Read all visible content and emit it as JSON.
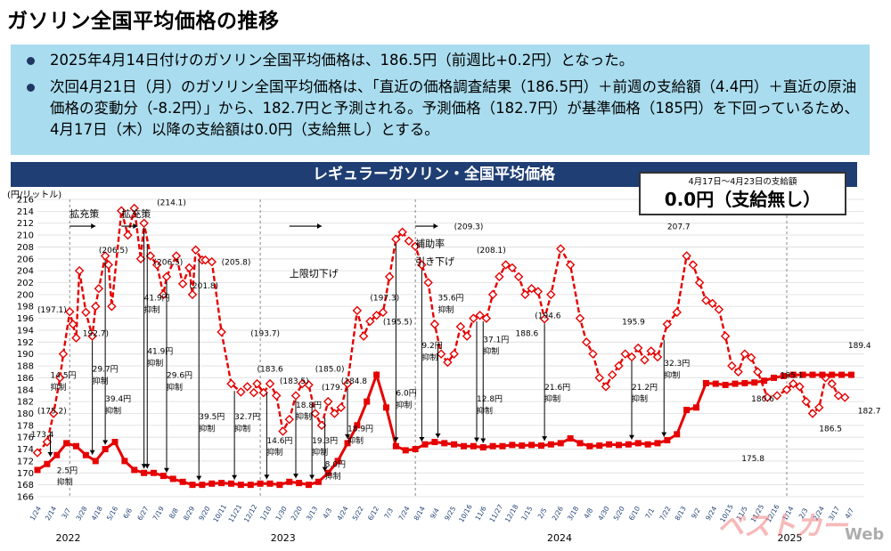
{
  "page_title": "ガソリン全国平均価格の推移",
  "summary": {
    "bullet1": "2025年4月14日付けのガソリン全国平均価格は、186.5円（前週比+0.2円）となった。",
    "bullet2": "次回4月21日（月）のガソリン全国平均価格は、「直近の価格調査結果（186.5円）＋前週の支給額（4.4円）＋直近の原油価格の変動分（-8.2円）」から、182.7円と予測される。予測価格（182.7円）が基準価格（185円）を下回っているため、4月17日（木）以降の支給額は0.0円（支給無し）とする。"
  },
  "banner": "レギュラーガソリン・全国平均価格",
  "subsidy_box": {
    "period": "4月17日〜4月23日の支給額",
    "amount": "0.0円（支給無し）"
  },
  "colors": {
    "series": "#e60000",
    "banner_bg": "#1f3e73",
    "summary_bg": "#a9dcee",
    "arrow": "#000000"
  },
  "watermark": {
    "logo": "ベストカー",
    "suffix": "Web"
  },
  "chart_data": {
    "type": "line",
    "unit": "(円/リットル)",
    "ylim": [
      166,
      216
    ],
    "yticks": [
      166,
      168,
      170,
      172,
      174,
      176,
      178,
      180,
      182,
      184,
      186,
      188,
      190,
      192,
      194,
      196,
      198,
      200,
      202,
      204,
      206,
      208,
      210,
      212,
      214,
      216
    ],
    "grid": "horizontal",
    "xtick_labels": [
      "1/24",
      "2/14",
      "3/7",
      "3/28",
      "4/18",
      "5/16",
      "6/6",
      "6/27",
      "7/19",
      "8/8",
      "8/29",
      "9/20",
      "10/11",
      "11/21",
      "12/12",
      "1/10",
      "1/30",
      "2/20",
      "3/13",
      "4/3",
      "4/24",
      "5/22",
      "6/12",
      "7/3",
      "7/24",
      "8/14",
      "9/4",
      "9/25",
      "10/16",
      "11/6",
      "11/27",
      "12/18",
      "1/15",
      "2/5",
      "2/26",
      "3/18",
      "4/8",
      "4/30",
      "5/20",
      "6/10",
      "7/1",
      "7/22",
      "8/13",
      "9/2",
      "9/24",
      "10/15",
      "11/5",
      "11/25",
      "12/16",
      "1/14",
      "2/3",
      "2/24",
      "3/17",
      "4/7"
    ],
    "year_labels": [
      {
        "label": "2022",
        "at": "3/7"
      },
      {
        "label": "2023",
        "at": "1/30"
      },
      {
        "label": "2024",
        "at": "2/26"
      },
      {
        "label": "2025",
        "at": "1/14"
      }
    ],
    "series": [
      {
        "role": "without_subsidy",
        "x": [
          0,
          3,
          5,
          7,
          8,
          10,
          11,
          12,
          13,
          15,
          17,
          18,
          19,
          21,
          22,
          23,
          26,
          28,
          30,
          32,
          33,
          35,
          37,
          39,
          40,
          43,
          45,
          47,
          48,
          49,
          51,
          52,
          54,
          57,
          60,
          63,
          65,
          67,
          68,
          70,
          72,
          74,
          76,
          78,
          80,
          82,
          84,
          86,
          88,
          90,
          92,
          94,
          96,
          99,
          101,
          103,
          105,
          107,
          109,
          111,
          113,
          115,
          117,
          119,
          121,
          123,
          125,
          127,
          129,
          131,
          133,
          135,
          137,
          139,
          141,
          143,
          145,
          147,
          149,
          151,
          153,
          155,
          157,
          159,
          162,
          165,
          168,
          170,
          172,
          174,
          176,
          178,
          180,
          182,
          184,
          186,
          188,
          190,
          192,
          195,
          198,
          201,
          203,
          205,
          207,
          209,
          211,
          213,
          215,
          217,
          219,
          221,
          223,
          226,
          229,
          232,
          234,
          236,
          238,
          240,
          242,
          244,
          246,
          248,
          250
        ],
        "values": [
          173.4,
          175.2,
          180.0,
          186.0,
          190.0,
          197.1,
          195.0,
          192.7,
          204.0,
          197.0,
          193.0,
          198.0,
          201.0,
          206.5,
          205.0,
          198.0,
          214.1,
          210.0,
          214.5,
          206.0,
          212.0,
          206.5,
          205.0,
          200.0,
          203.0,
          206.5,
          201.8,
          204.5,
          200.0,
          207.5,
          205.8,
          205.8,
          205.5,
          193.7,
          185.0,
          183.6,
          184.5,
          183.5,
          185.0,
          183.5,
          185.0,
          183.0,
          177.0,
          179.0,
          183.0,
          185.0,
          184.8,
          180.0,
          178.0,
          182.0,
          180.0,
          181.0,
          185.0,
          197.3,
          193.0,
          195.5,
          196.5,
          197.0,
          203.0,
          209.3,
          210.5,
          209.0,
          208.1,
          205.0,
          202.0,
          195.0,
          190.0,
          188.6,
          190.0,
          194.6,
          193.0,
          196.0,
          196.5,
          196.0,
          200.0,
          203.0,
          205.0,
          204.5,
          203.0,
          200.0,
          201.0,
          200.5,
          195.9,
          200.0,
          207.7,
          205.0,
          196.0,
          192.0,
          190.0,
          186.0,
          184.5,
          186.5,
          188.0,
          190.0,
          189.5,
          191.0,
          189.0,
          190.5,
          189.5,
          195.0,
          197.0,
          206.5,
          205.0,
          202.0,
          199.0,
          198.5,
          197.5,
          193.0,
          188.0,
          187.0,
          190.0,
          189.4,
          187.0,
          182.7,
          183.0,
          184.0,
          185.0,
          184.5,
          182.0,
          180.0,
          181.0,
          186.0,
          185.0,
          183.0,
          182.7
        ]
      },
      {
        "role": "actual",
        "x": [
          0,
          3,
          6,
          9,
          12,
          15,
          18,
          21,
          24,
          27,
          30,
          33,
          36,
          39,
          42,
          45,
          48,
          51,
          54,
          57,
          60,
          63,
          66,
          69,
          72,
          75,
          78,
          81,
          84,
          87,
          90,
          93,
          96,
          99,
          102,
          105,
          108,
          111,
          114,
          117,
          120,
          123,
          126,
          129,
          132,
          135,
          138,
          141,
          144,
          147,
          150,
          153,
          156,
          159,
          162,
          165,
          168,
          171,
          174,
          177,
          180,
          183,
          186,
          189,
          192,
          195,
          198,
          201,
          204,
          207,
          210,
          213,
          216,
          219,
          222,
          225,
          228,
          231,
          234,
          237,
          240,
          243,
          246,
          249,
          252
        ],
        "values": [
          170.5,
          171.5,
          173.0,
          175.0,
          174.5,
          173.0,
          172.0,
          174.0,
          175.2,
          172.0,
          170.5,
          170.0,
          170.0,
          169.5,
          169.0,
          168.5,
          168.0,
          168.0,
          168.2,
          168.3,
          168.2,
          168.0,
          168.0,
          168.2,
          168.2,
          168.0,
          168.5,
          168.3,
          168.0,
          168.5,
          170.0,
          172.0,
          175.0,
          178.0,
          182.0,
          186.5,
          181.0,
          174.5,
          173.8,
          174.0,
          174.8,
          175.2,
          175.0,
          174.8,
          174.5,
          174.5,
          174.3,
          174.5,
          174.5,
          174.7,
          174.6,
          174.7,
          174.6,
          174.8,
          175.0,
          175.8,
          175.0,
          174.5,
          174.6,
          174.8,
          174.7,
          174.8,
          175.0,
          174.8,
          175.0,
          175.5,
          176.5,
          180.6,
          181.0,
          185.1,
          185.0,
          184.8,
          185.0,
          185.1,
          185.2,
          185.5,
          186.0,
          186.3,
          186.5,
          186.5,
          186.5,
          186.5,
          186.5,
          186.5,
          186.5
        ]
      }
    ],
    "annotations": [
      {
        "text": "拡充策",
        "x": 10,
        "y": 213
      },
      {
        "text": "拡充策",
        "x": 26,
        "y": 213
      },
      {
        "text": "上限切下げ",
        "x": 78,
        "y": 203
      },
      {
        "text": "補助率",
        "x": 117,
        "y": 208
      },
      {
        "text": "引き下げ",
        "x": 117,
        "y": 205
      },
      {
        "text": "(197.1)",
        "x": 0,
        "y": 197
      },
      {
        "text": "(175.2)",
        "x": 0,
        "y": 180
      },
      {
        "text": "173.4",
        "x": -2,
        "y": 176
      },
      {
        "text": "14.5円",
        "x": 4,
        "y": 186
      },
      {
        "text": "抑制",
        "x": 4,
        "y": 184
      },
      {
        "text": "2.5円",
        "x": 6,
        "y": 170
      },
      {
        "text": "抑制",
        "x": 6,
        "y": 168
      },
      {
        "text": "192.7)",
        "x": 14,
        "y": 193
      },
      {
        "text": "29.7円",
        "x": 17,
        "y": 187
      },
      {
        "text": "抑制",
        "x": 17,
        "y": 185
      },
      {
        "text": "(206.5)",
        "x": 19,
        "y": 207
      },
      {
        "text": "39.4円",
        "x": 21,
        "y": 182
      },
      {
        "text": "抑制",
        "x": 21,
        "y": 180
      },
      {
        "text": "(214.1)",
        "x": 37,
        "y": 215
      },
      {
        "text": "41.9円",
        "x": 33,
        "y": 199
      },
      {
        "text": "抑制",
        "x": 33,
        "y": 197
      },
      {
        "text": "41.9円",
        "x": 34,
        "y": 190
      },
      {
        "text": "抑制",
        "x": 34,
        "y": 188
      },
      {
        "text": "(206.5)",
        "x": 36,
        "y": 205
      },
      {
        "text": "29.6円",
        "x": 40,
        "y": 186
      },
      {
        "text": "抑制",
        "x": 40,
        "y": 184
      },
      {
        "text": "(201.8)",
        "x": 47,
        "y": 201
      },
      {
        "text": "(205.8)",
        "x": 57,
        "y": 205
      },
      {
        "text": "39.5円",
        "x": 50,
        "y": 179
      },
      {
        "text": "抑制",
        "x": 50,
        "y": 177
      },
      {
        "text": "32.7円",
        "x": 61,
        "y": 179
      },
      {
        "text": "抑制",
        "x": 61,
        "y": 177
      },
      {
        "text": "(193.7)",
        "x": 66,
        "y": 193
      },
      {
        "text": "(183.6",
        "x": 68,
        "y": 187
      },
      {
        "text": "(183.5)",
        "x": 75,
        "y": 185
      },
      {
        "text": "14.6円",
        "x": 71,
        "y": 175
      },
      {
        "text": "抑制",
        "x": 71,
        "y": 173
      },
      {
        "text": "18.8円",
        "x": 80,
        "y": 181
      },
      {
        "text": "抑制",
        "x": 80,
        "y": 179
      },
      {
        "text": "(185.0)",
        "x": 86,
        "y": 187
      },
      {
        "text": "(179.",
        "x": 88,
        "y": 184
      },
      {
        "text": "(184.8",
        "x": 94,
        "y": 185
      },
      {
        "text": "19.3円",
        "x": 85,
        "y": 175
      },
      {
        "text": "抑制",
        "x": 85,
        "y": 173
      },
      {
        "text": "8.0円",
        "x": 89,
        "y": 171
      },
      {
        "text": "抑制",
        "x": 89,
        "y": 169
      },
      {
        "text": "18.9円",
        "x": 96,
        "y": 177
      },
      {
        "text": "抑制",
        "x": 96,
        "y": 175
      },
      {
        "text": "(197.3)",
        "x": 103,
        "y": 199
      },
      {
        "text": "(195.5)",
        "x": 107,
        "y": 195
      },
      {
        "text": "6.0円",
        "x": 111,
        "y": 183
      },
      {
        "text": "抑制",
        "x": 111,
        "y": 181
      },
      {
        "text": "9.2円",
        "x": 119,
        "y": 191
      },
      {
        "text": "抑制",
        "x": 119,
        "y": 189
      },
      {
        "text": "35.6円",
        "x": 124,
        "y": 199
      },
      {
        "text": "抑制",
        "x": 124,
        "y": 197
      },
      {
        "text": "(209.3)",
        "x": 129,
        "y": 211
      },
      {
        "text": "(208.1)",
        "x": 136,
        "y": 207
      },
      {
        "text": "37.1円",
        "x": 138,
        "y": 192
      },
      {
        "text": "抑制",
        "x": 138,
        "y": 190
      },
      {
        "text": "12.8円",
        "x": 136,
        "y": 182
      },
      {
        "text": "抑制",
        "x": 136,
        "y": 180
      },
      {
        "text": "188.6",
        "x": 148,
        "y": 193
      },
      {
        "text": "(194.6",
        "x": 154,
        "y": 196
      },
      {
        "text": "21.6円",
        "x": 157,
        "y": 184
      },
      {
        "text": "抑制",
        "x": 157,
        "y": 182
      },
      {
        "text": "195.9",
        "x": 181,
        "y": 195
      },
      {
        "text": "21.2円",
        "x": 184,
        "y": 184
      },
      {
        "text": "抑制",
        "x": 184,
        "y": 182
      },
      {
        "text": "207.7",
        "x": 195,
        "y": 211
      },
      {
        "text": "32.3円",
        "x": 194,
        "y": 188
      },
      {
        "text": "抑制",
        "x": 194,
        "y": 186
      },
      {
        "text": "180.6",
        "x": 221,
        "y": 182
      },
      {
        "text": "185.1",
        "x": 230,
        "y": 186
      },
      {
        "text": "175.8",
        "x": 218,
        "y": 172
      },
      {
        "text": "189.4",
        "x": 251,
        "y": 191
      },
      {
        "text": "182.7",
        "x": 254,
        "y": 180
      },
      {
        "text": "186.5",
        "x": 242,
        "y": 177
      }
    ],
    "policy_markers": [
      {
        "label": "拡充策",
        "x": 10
      },
      {
        "label": "上限切下げ",
        "x": 69
      },
      {
        "label": "補助率引き下げ",
        "x": 117
      },
      {
        "label": "2025",
        "x": 232
      }
    ]
  }
}
